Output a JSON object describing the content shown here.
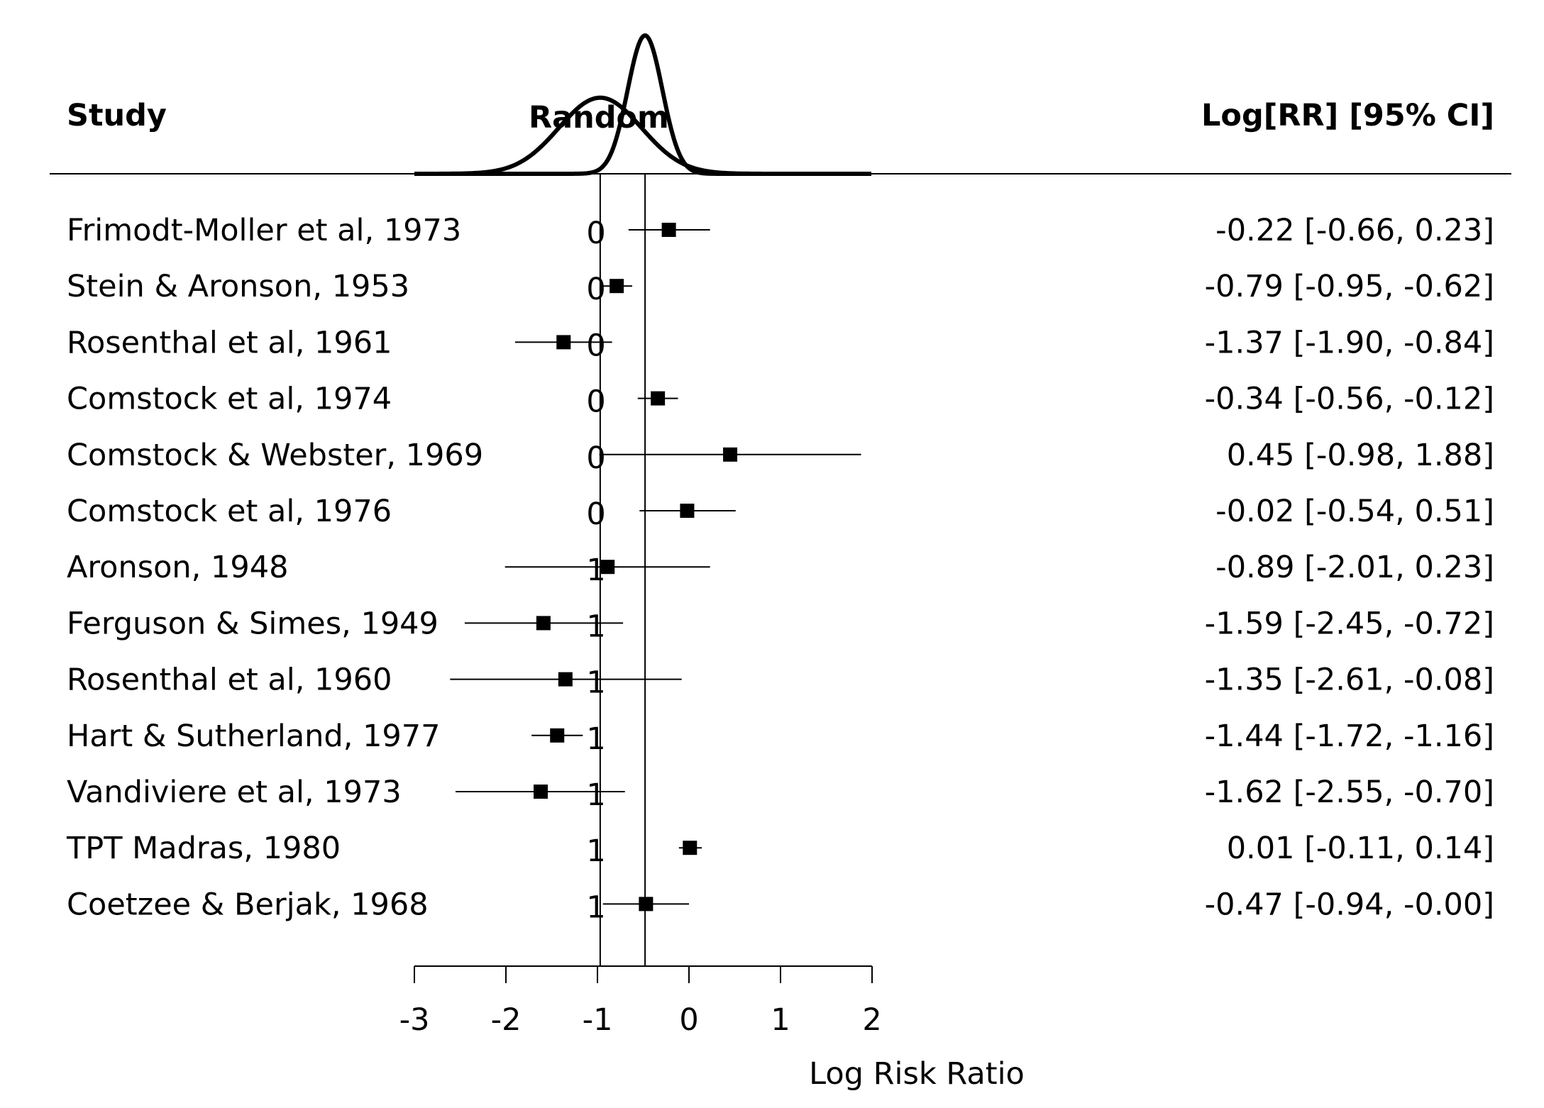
{
  "chart_data": {
    "type": "forest",
    "headers": {
      "study": "Study",
      "group": "Random",
      "estimate": "Log[RR] [95% CI]"
    },
    "xlabel": "Log Risk Ratio",
    "xlim": [
      -3,
      2
    ],
    "xticks": [
      "-3",
      "-2",
      "-1",
      "0",
      "1",
      "2"
    ],
    "reference_lines": [
      -0.97,
      -0.48
    ],
    "density_curves": [
      {
        "mean": -0.97,
        "sd": 0.45,
        "peak_relative": 0.55
      },
      {
        "mean": -0.48,
        "sd": 0.19,
        "peak_relative": 1.0
      }
    ],
    "rows": [
      {
        "study": "Frimodt-Moller et al, 1973",
        "group": "0",
        "est": -0.22,
        "lo": -0.66,
        "hi": 0.23,
        "label": "-0.22 [-0.66,  0.23]"
      },
      {
        "study": "Stein & Aronson, 1953",
        "group": "0",
        "est": -0.79,
        "lo": -0.95,
        "hi": -0.62,
        "label": "-0.79 [-0.95, -0.62]"
      },
      {
        "study": "Rosenthal et al, 1961",
        "group": "0",
        "est": -1.37,
        "lo": -1.9,
        "hi": -0.84,
        "label": "-1.37 [-1.90, -0.84]"
      },
      {
        "study": "Comstock et al, 1974",
        "group": "0",
        "est": -0.34,
        "lo": -0.56,
        "hi": -0.12,
        "label": "-0.34 [-0.56, -0.12]"
      },
      {
        "study": "Comstock & Webster, 1969",
        "group": "0",
        "est": 0.45,
        "lo": -0.98,
        "hi": 1.88,
        "label": "0.45 [-0.98,  1.88]"
      },
      {
        "study": "Comstock et al, 1976",
        "group": "0",
        "est": -0.02,
        "lo": -0.54,
        "hi": 0.51,
        "label": "-0.02 [-0.54,  0.51]"
      },
      {
        "study": "Aronson, 1948",
        "group": "1",
        "est": -0.89,
        "lo": -2.01,
        "hi": 0.23,
        "label": "-0.89 [-2.01,  0.23]"
      },
      {
        "study": "Ferguson & Simes, 1949",
        "group": "1",
        "est": -1.59,
        "lo": -2.45,
        "hi": -0.72,
        "label": "-1.59 [-2.45, -0.72]"
      },
      {
        "study": "Rosenthal et al, 1960",
        "group": "1",
        "est": -1.35,
        "lo": -2.61,
        "hi": -0.08,
        "label": "-1.35 [-2.61, -0.08]"
      },
      {
        "study": "Hart & Sutherland, 1977",
        "group": "1",
        "est": -1.44,
        "lo": -1.72,
        "hi": -1.16,
        "label": "-1.44 [-1.72, -1.16]"
      },
      {
        "study": "Vandiviere et al, 1973",
        "group": "1",
        "est": -1.62,
        "lo": -2.55,
        "hi": -0.7,
        "label": "-1.62 [-2.55, -0.70]"
      },
      {
        "study": "TPT Madras, 1980",
        "group": "1",
        "est": 0.01,
        "lo": -0.11,
        "hi": 0.14,
        "label": "0.01 [-0.11,  0.14]"
      },
      {
        "study": "Coetzee & Berjak, 1968",
        "group": "1",
        "est": -0.47,
        "lo": -0.94,
        "hi": -0.0,
        "label": "-0.47 [-0.94, -0.00]"
      }
    ]
  }
}
